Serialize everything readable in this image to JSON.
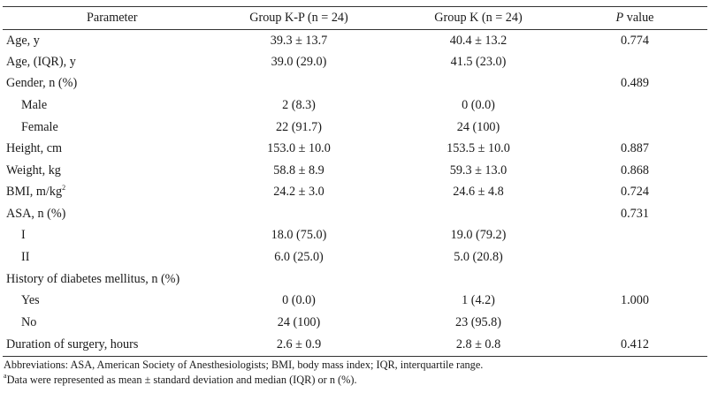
{
  "headers": {
    "parameter": "Parameter",
    "group_kp": "Group K-P (n = 24)",
    "group_k": "Group K (n = 24)",
    "p_italic": "P",
    "p_rest": " value"
  },
  "rows": [
    {
      "label": "Age, y",
      "kp": "39.3 ± 13.7",
      "k": "40.4 ± 13.2",
      "p": "0.774"
    },
    {
      "label": "Age, (IQR), y",
      "kp": "39.0 (29.0)",
      "k": "41.5 (23.0)",
      "p": ""
    },
    {
      "label": "Gender, n (%)",
      "kp": "",
      "k": "",
      "p": "0.489"
    },
    {
      "label": "Male",
      "kp": "2 (8.3)",
      "k": "0 (0.0)",
      "p": ""
    },
    {
      "label": "Female",
      "kp": "22 (91.7)",
      "k": "24 (100)",
      "p": ""
    },
    {
      "label": "Height, cm",
      "kp": "153.0 ± 10.0",
      "k": "153.5 ± 10.0",
      "p": "0.887"
    },
    {
      "label": "Weight, kg",
      "kp": "58.8 ± 8.9",
      "k": "59.3 ± 13.0",
      "p": "0.868"
    },
    {
      "label": "BMI, m/kg",
      "label_sup": "2",
      "kp": "24.2 ± 3.0",
      "k": "24.6 ± 4.8",
      "p": "0.724"
    },
    {
      "label": "ASA, n (%)",
      "kp": "",
      "k": "",
      "p": "0.731"
    },
    {
      "label": "I",
      "kp": "18.0 (75.0)",
      "k": "19.0 (79.2)",
      "p": ""
    },
    {
      "label": "II",
      "kp": "6.0 (25.0)",
      "k": "5.0 (20.8)",
      "p": ""
    },
    {
      "label": "History of diabetes mellitus, n (%)",
      "kp": "",
      "k": "",
      "p": ""
    },
    {
      "label": "Yes",
      "kp": "0 (0.0)",
      "k": "1 (4.2)",
      "p": "1.000"
    },
    {
      "label": "No",
      "kp": "24 (100)",
      "k": "23 (95.8)",
      "p": ""
    },
    {
      "label": "Duration of surgery, hours",
      "kp": "2.6 ± 0.9",
      "k": "2.8 ± 0.8",
      "p": "0.412"
    }
  ],
  "footnotes": {
    "abbreviations": "Abbreviations: ASA, American Society of Anesthesiologists; BMI, body mass index; IQR, interquartile range.",
    "data_sup": "a",
    "data_note": "Data were represented as mean ± standard deviation and median (IQR) or n (%)."
  }
}
